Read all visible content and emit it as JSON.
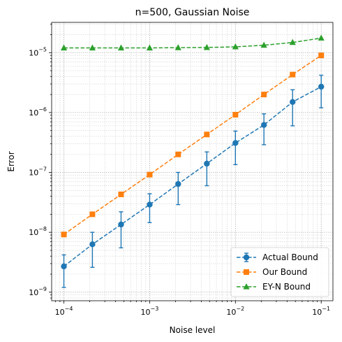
{
  "chart_data": {
    "type": "line",
    "title": "n=500, Gaussian Noise",
    "xlabel": "Noise level",
    "ylabel": "Error",
    "xscale": "log",
    "yscale": "log",
    "xlim": [
      7.2e-05,
      0.137
    ],
    "ylim": [
      7.2e-10,
      3.2e-05
    ],
    "x_ticks": [
      {
        "value": 0.0001,
        "base": "10",
        "exp": "−4"
      },
      {
        "value": 0.001,
        "base": "10",
        "exp": "−3"
      },
      {
        "value": 0.01,
        "base": "10",
        "exp": "−2"
      },
      {
        "value": 0.1,
        "base": "10",
        "exp": "−1"
      }
    ],
    "y_ticks": [
      {
        "value": 1e-09,
        "base": "10",
        "exp": "−9"
      },
      {
        "value": 1e-08,
        "base": "10",
        "exp": "−8"
      },
      {
        "value": 1e-07,
        "base": "10",
        "exp": "−7"
      },
      {
        "value": 1e-06,
        "base": "10",
        "exp": "−6"
      },
      {
        "value": 1e-05,
        "base": "10",
        "exp": "−5"
      }
    ],
    "grid": "both (major and minor, dotted)",
    "legend_position": "lower-right",
    "x": [
      0.0001,
      0.000215,
      0.000464,
      0.001,
      0.00215,
      0.00464,
      0.01,
      0.0215,
      0.0464,
      0.1
    ],
    "series": [
      {
        "name": "Actual Bound",
        "color": "#1f77b4",
        "marker": "circle",
        "values": [
          2.7e-09,
          6.3e-09,
          1.35e-08,
          2.9e-08,
          6.4e-08,
          1.4e-07,
          3.1e-07,
          6.2e-07,
          1.5e-06,
          2.7e-06
        ],
        "error_low": [
          1.2e-09,
          2.6e-09,
          5.5e-09,
          1.45e-08,
          2.9e-08,
          6e-08,
          1.35e-07,
          2.9e-07,
          6e-07,
          1.2e-06
        ],
        "error_high": [
          4.2e-09,
          1e-08,
          2.2e-08,
          4.4e-08,
          1e-07,
          2.2e-07,
          4.9e-07,
          9.5e-07,
          2.4e-06,
          4.2e-06
        ]
      },
      {
        "name": "Our Bound",
        "color": "#ff7f0e",
        "marker": "square",
        "values": [
          9.2e-09,
          2e-08,
          4.3e-08,
          9.2e-08,
          2e-07,
          4.3e-07,
          9.2e-07,
          2e-06,
          4.3e-06,
          9e-06
        ]
      },
      {
        "name": "EY-N Bound",
        "color": "#2ca02c",
        "marker": "triangle",
        "values": [
          1.2e-05,
          1.2e-05,
          1.2e-05,
          1.2e-05,
          1.21e-05,
          1.22e-05,
          1.25e-05,
          1.33e-05,
          1.48e-05,
          1.75e-05
        ]
      }
    ]
  }
}
